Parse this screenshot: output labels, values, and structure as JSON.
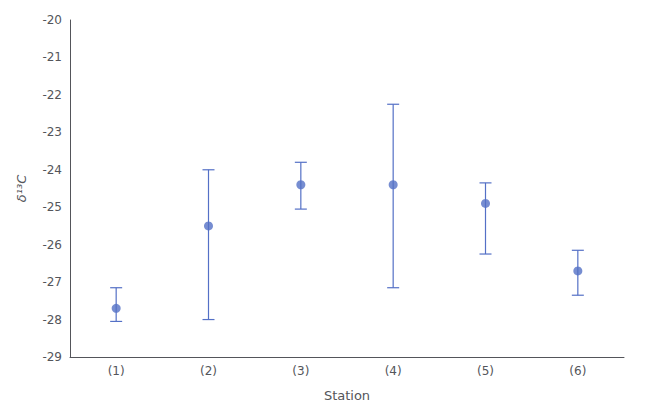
{
  "chart_data": {
    "type": "scatter",
    "xlabel": "Station",
    "ylabel": "δ¹³C",
    "categories": [
      "(1)",
      "(2)",
      "(3)",
      "(4)",
      "(5)",
      "(6)"
    ],
    "values": [
      -27.7,
      -25.5,
      -24.4,
      -24.4,
      -24.9,
      -26.7
    ],
    "error_upper": [
      0.55,
      1.5,
      0.6,
      2.15,
      0.55,
      0.55
    ],
    "error_lower": [
      0.35,
      2.5,
      0.65,
      2.75,
      1.35,
      0.65
    ],
    "ylim": [
      -29,
      -20
    ],
    "yticks": [
      -29,
      -28,
      -27,
      -26,
      -25,
      -24,
      -23,
      -22,
      -21,
      -20
    ],
    "grid": false
  }
}
